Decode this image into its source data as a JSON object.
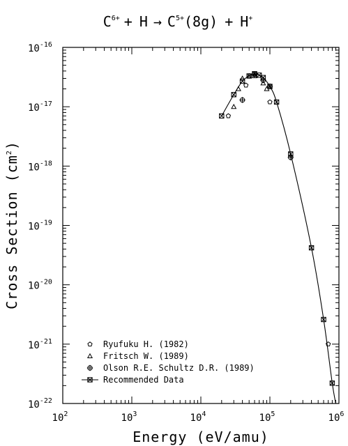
{
  "chart_data": {
    "type": "scatter",
    "title": "C6+ + H → C5+(8g) + H+",
    "title_parts": {
      "ion1_base": "C",
      "ion1_sup": "6+",
      "plus1": "+",
      "target": "H",
      "arrow": "→",
      "ion2_base": "C",
      "ion2_sup": "5+",
      "state": "(8g)",
      "plus2": "+",
      "prod_base": "H",
      "prod_sup": "+"
    },
    "xlabel": "Energy (eV/amu)",
    "ylabel_base": "Cross Section (cm",
    "ylabel_sup": "2",
    "ylabel_end": ")",
    "x_scale": "log",
    "y_scale": "log",
    "xlim": [
      100,
      1000000
    ],
    "ylim": [
      1e-22,
      1e-16
    ],
    "x_ticks": [
      {
        "base": "10",
        "exp": "2"
      },
      {
        "base": "10",
        "exp": "3"
      },
      {
        "base": "10",
        "exp": "4"
      },
      {
        "base": "10",
        "exp": "5"
      },
      {
        "base": "10",
        "exp": "6"
      }
    ],
    "y_ticks": [
      {
        "base": "10",
        "exp": "-22"
      },
      {
        "base": "10",
        "exp": "-21"
      },
      {
        "base": "10",
        "exp": "-20"
      },
      {
        "base": "10",
        "exp": "-19"
      },
      {
        "base": "10",
        "exp": "-18"
      },
      {
        "base": "10",
        "exp": "-17"
      },
      {
        "base": "10",
        "exp": "-16"
      }
    ],
    "legend_position": "bottom-left",
    "series": [
      {
        "name": "Ryufuku H. (1982)",
        "marker": "pentagon",
        "points": [
          [
            25000,
            7e-18
          ],
          [
            45000,
            2.3e-17
          ],
          [
            100000,
            1.2e-17
          ],
          [
            700000,
            1e-21
          ]
        ]
      },
      {
        "name": "Fritsch W. (1989)",
        "marker": "triangle",
        "points": [
          [
            30000,
            1e-17
          ],
          [
            35000,
            2e-17
          ],
          [
            40000,
            3e-17
          ],
          [
            50000,
            3.3e-17
          ],
          [
            60000,
            3.3e-17
          ],
          [
            80000,
            2.5e-17
          ],
          [
            90000,
            2e-17
          ]
        ]
      },
      {
        "name": "Olson R.E. Schultz D.R. (1989)",
        "marker": "circle-plus",
        "points": [
          [
            40000,
            1.3e-17
          ],
          [
            60000,
            3.5e-17
          ],
          [
            80000,
            2.8e-17
          ],
          [
            100000,
            2.2e-17
          ],
          [
            200000,
            1.4e-18
          ]
        ]
      },
      {
        "name": "Recommended Data",
        "marker": "box-x",
        "line": true,
        "points": [
          [
            20000,
            7e-18
          ],
          [
            30000,
            1.6e-17
          ],
          [
            40000,
            2.7e-17
          ],
          [
            50000,
            3.3e-17
          ],
          [
            60000,
            3.6e-17
          ],
          [
            70000,
            3.4e-17
          ],
          [
            80000,
            3.1e-17
          ],
          [
            100000,
            2.2e-17
          ],
          [
            125000,
            1.2e-17
          ],
          [
            200000,
            1.6e-18
          ],
          [
            400000,
            4.2e-20
          ],
          [
            600000,
            2.6e-21
          ],
          [
            800000,
            2.2e-22
          ],
          [
            900000,
            1e-22
          ]
        ]
      }
    ]
  }
}
